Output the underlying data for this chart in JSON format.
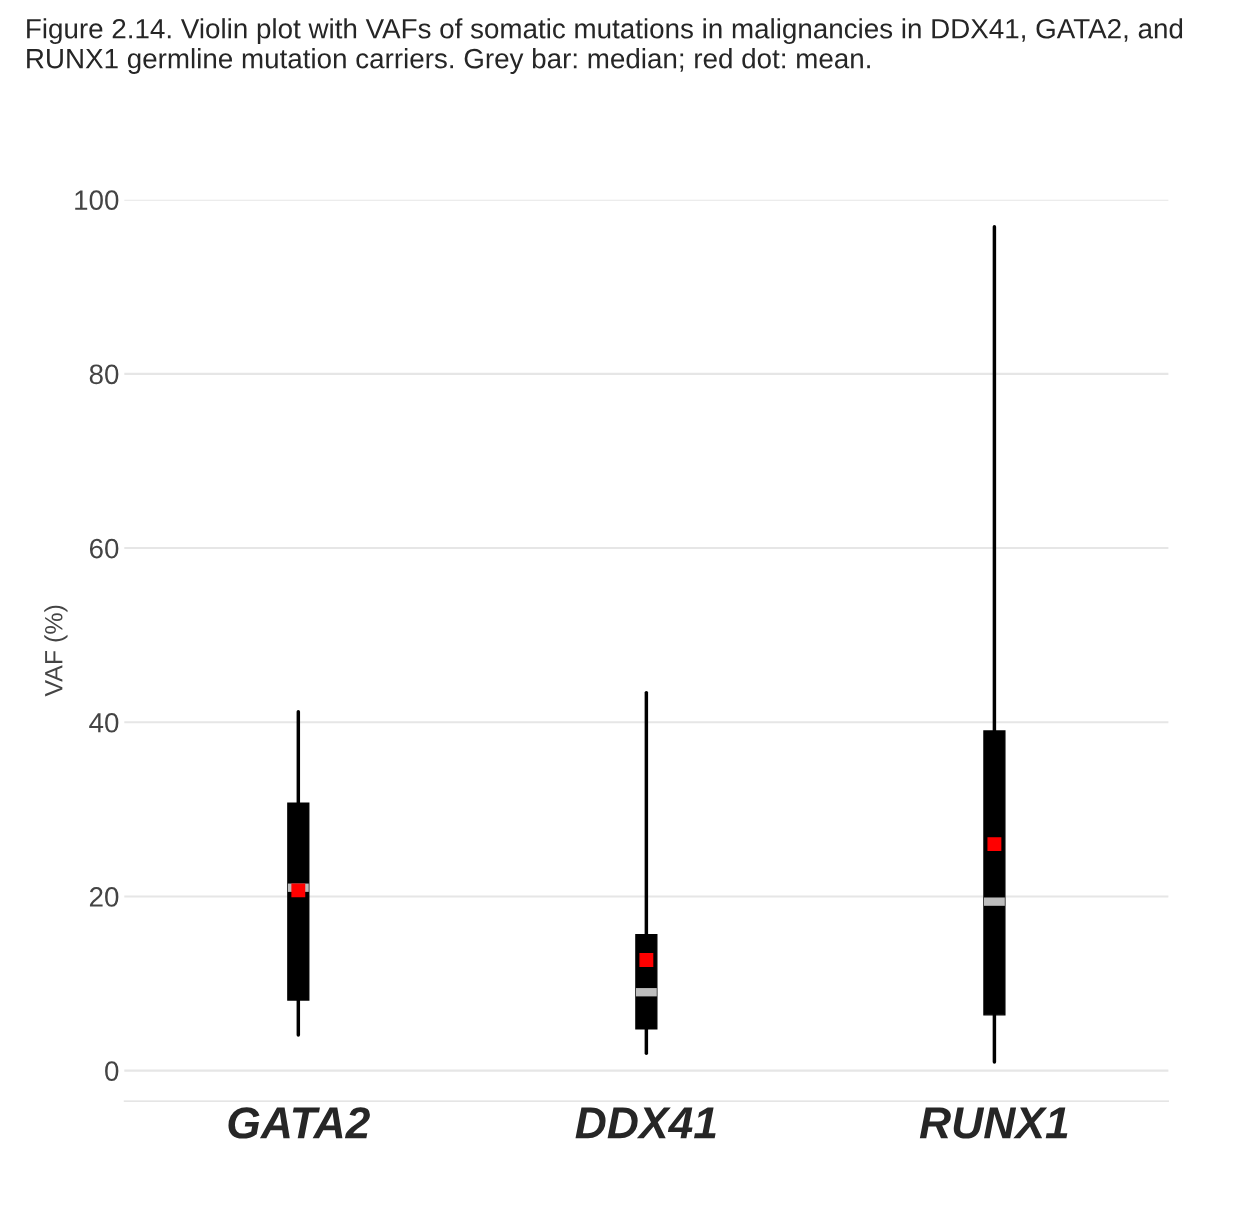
{
  "chart_data": {
    "type": "box",
    "title": "Figure 2.14. Violin plot with VAFs of somatic mutations in malignancies in DDX41, GATA2, and RUNX1 germline mutation carriers. Grey bar: median; red dot: mean.",
    "ylabel": "VAF (%)",
    "categories": [
      "GATA2",
      "DDX41",
      "RUNX1"
    ],
    "boxes": [
      {
        "low": 4.1,
        "q1": 8.1,
        "median": 21.0,
        "q3": 30.7,
        "high": 41.2,
        "mean": 20.7
      },
      {
        "low": 2.0,
        "q1": 4.8,
        "median": 9.0,
        "q3": 15.6,
        "high": 43.4,
        "mean": 12.7
      },
      {
        "low": 1.0,
        "q1": 6.4,
        "median": 19.4,
        "q3": 39.0,
        "high": 96.9,
        "mean": 26.0
      }
    ],
    "color": "#000000",
    "ylim": [
      -3.5,
      100
    ],
    "yticks": [
      0,
      20,
      40,
      60,
      80,
      100
    ],
    "grid": "y",
    "legend": false
  }
}
